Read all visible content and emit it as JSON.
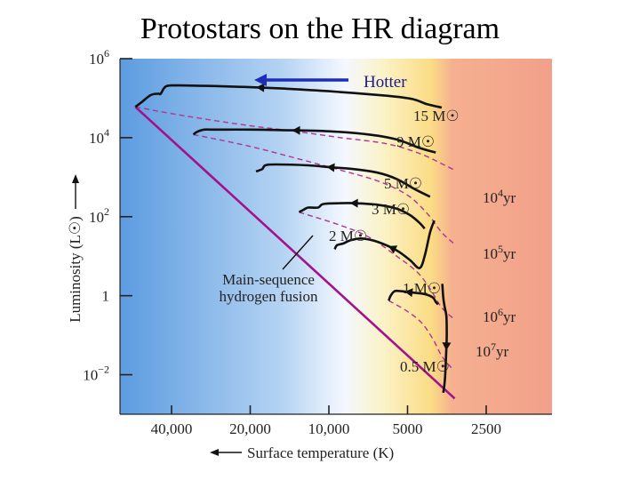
{
  "slide": {
    "title": "Protostars on the HR diagram"
  },
  "chart_data": {
    "type": "line",
    "title": "Protostars on the HR diagram",
    "xlabel": "Surface temperature (K)",
    "ylabel": "Luminosity (L☉)",
    "x_scale": "log-reversed",
    "y_scale": "log",
    "xlim": [
      63000,
      1400
    ],
    "ylim": [
      0.001,
      1000000
    ],
    "grid": false,
    "x_ticks": [
      {
        "value": 40000,
        "label": "40,000"
      },
      {
        "value": 20000,
        "label": "20,000"
      },
      {
        "value": 10000,
        "label": "10,000"
      },
      {
        "value": 5000,
        "label": "5000"
      },
      {
        "value": 2500,
        "label": "2500"
      }
    ],
    "y_ticks": [
      {
        "value": 1000000,
        "base": "10",
        "exp": "6"
      },
      {
        "value": 10000,
        "base": "10",
        "exp": "4"
      },
      {
        "value": 100,
        "base": "10",
        "exp": "2"
      },
      {
        "value": 1,
        "base": "1",
        "exp": ""
      },
      {
        "value": 0.01,
        "base": "10",
        "exp": "−2"
      }
    ],
    "main_sequence": {
      "label_lines": [
        "Main-sequence",
        "hydrogen fusion"
      ],
      "points": [
        [
          55000,
          60000
        ],
        [
          3300,
          0.0025
        ]
      ]
    },
    "series": [
      {
        "name": "15 M☉",
        "points": [
          [
            55000,
            60000
          ],
          [
            52000,
            80000
          ],
          [
            48000,
            120000
          ],
          [
            45000,
            130000
          ],
          [
            44000,
            130000
          ],
          [
            42000,
            200000
          ],
          [
            38000,
            210000
          ],
          [
            30000,
            205000
          ],
          [
            20000,
            190000
          ],
          [
            15000,
            175000
          ],
          [
            10000,
            150000
          ],
          [
            6000,
            115000
          ],
          [
            4800,
            95000
          ],
          [
            4200,
            70000
          ],
          [
            3700,
            58000
          ]
        ]
      },
      {
        "name": "9 M☉",
        "points": [
          [
            33000,
            12000
          ],
          [
            32000,
            14000
          ],
          [
            30000,
            16000
          ],
          [
            27500,
            16000
          ],
          [
            20000,
            16000
          ],
          [
            15000,
            15500
          ],
          [
            10000,
            14500
          ],
          [
            7000,
            12000
          ],
          [
            5500,
            9000
          ],
          [
            4500,
            5500
          ],
          [
            3900,
            4200
          ]
        ]
      },
      {
        "name": "5 M☉",
        "points": [
          [
            19000,
            1400
          ],
          [
            18000,
            1600
          ],
          [
            17500,
            2000
          ],
          [
            16000,
            2100
          ],
          [
            12000,
            2000
          ],
          [
            10000,
            1800
          ],
          [
            8000,
            1600
          ],
          [
            6500,
            1300
          ],
          [
            5500,
            900
          ],
          [
            4700,
            500
          ],
          [
            4100,
            320
          ]
        ]
      },
      {
        "name": "3 M☉",
        "points": [
          [
            13000,
            130
          ],
          [
            12500,
            150
          ],
          [
            12000,
            170
          ],
          [
            11000,
            170
          ],
          [
            10500,
            210
          ],
          [
            9000,
            220
          ],
          [
            8000,
            220
          ],
          [
            6500,
            200
          ],
          [
            5500,
            160
          ],
          [
            4900,
            110
          ],
          [
            4500,
            70
          ],
          [
            4300,
            50
          ]
        ]
      },
      {
        "name": "2 M☉",
        "points": [
          [
            9500,
            15
          ],
          [
            9300,
            19
          ],
          [
            8800,
            21
          ],
          [
            8300,
            25
          ],
          [
            7500,
            28
          ],
          [
            6500,
            23
          ],
          [
            5500,
            14
          ],
          [
            4900,
            8
          ],
          [
            4500,
            5
          ],
          [
            4300,
            10
          ],
          [
            4100,
            40
          ],
          [
            3950,
            80
          ]
        ]
      },
      {
        "name": "1 M☉",
        "points": [
          [
            5900,
            0.75
          ],
          [
            5800,
            1
          ],
          [
            5600,
            1.3
          ],
          [
            5300,
            1.3
          ],
          [
            4800,
            1.2
          ],
          [
            4300,
            1.1
          ],
          [
            4000,
            0.9
          ],
          [
            3900,
            0.7
          ],
          [
            3820,
            0.6
          ]
        ]
      },
      {
        "name": "0.5 M☉",
        "points": [
          [
            3650,
            0.0035
          ],
          [
            3600,
            0.007
          ],
          [
            3560,
            0.03
          ],
          [
            3540,
            0.1
          ],
          [
            3550,
            0.3
          ],
          [
            3600,
            0.5
          ],
          [
            3650,
            0.9
          ],
          [
            3680,
            2
          ]
        ]
      }
    ],
    "isochrones": [
      {
        "label": "10⁴yr",
        "base": "10",
        "exp": "4",
        "unit": "yr",
        "points": [
          [
            55000,
            60000
          ],
          [
            35000,
            35000
          ],
          [
            20000,
            20000
          ],
          [
            14000,
            15000
          ],
          [
            9000,
            10000
          ],
          [
            6000,
            7000
          ],
          [
            4500,
            4000
          ],
          [
            3700,
            2200
          ],
          [
            3300,
            1500
          ]
        ]
      },
      {
        "label": "10⁵yr",
        "base": "10",
        "exp": "5",
        "unit": "yr",
        "points": [
          [
            33000,
            12000
          ],
          [
            20000,
            6000
          ],
          [
            12000,
            2500
          ],
          [
            9000,
            1500
          ],
          [
            6500,
            800
          ],
          [
            5000,
            350
          ],
          [
            4200,
            120
          ],
          [
            3700,
            40
          ],
          [
            3300,
            20
          ]
        ]
      },
      {
        "label": "10⁶yr",
        "base": "10",
        "exp": "6",
        "unit": "yr",
        "points": [
          [
            13000,
            130
          ],
          [
            9000,
            60
          ],
          [
            7000,
            30
          ],
          [
            5500,
            10
          ],
          [
            4600,
            4
          ],
          [
            4100,
            1.5
          ],
          [
            3700,
            0.5
          ],
          [
            3300,
            0.25
          ]
        ]
      },
      {
        "label": "10⁷yr",
        "base": "10",
        "exp": "7",
        "unit": "yr",
        "points": [
          [
            5900,
            0.75
          ],
          [
            5000,
            0.4
          ],
          [
            4400,
            0.2
          ],
          [
            4000,
            0.08
          ],
          [
            3700,
            0.03
          ],
          [
            3400,
            0.015
          ]
        ]
      }
    ],
    "annotations": [
      {
        "text": "Hotter",
        "arrow": "left"
      }
    ]
  },
  "colors": {
    "hot_blue": "#6aa8e6",
    "mid_white": "#f4f8ff",
    "warm_yellow": "#fbe48f",
    "cool_red": "#f2a089",
    "main_sequence": "#a3128a",
    "isochrone": "#b0358f",
    "track": "#111111",
    "hotter_arrow": "#1e2db8"
  }
}
